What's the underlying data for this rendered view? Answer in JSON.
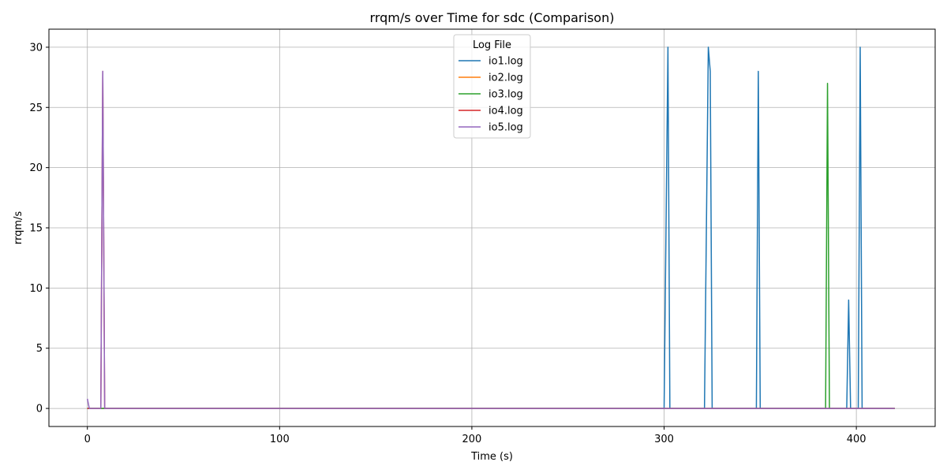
{
  "chart_data": {
    "type": "line",
    "title": "rrqm/s over Time for sdc (Comparison)",
    "xlabel": "Time (s)",
    "ylabel": "rrqm/s",
    "xlim": [
      -20,
      441
    ],
    "ylim": [
      -1.5,
      31.5
    ],
    "xticks": [
      0,
      100,
      200,
      300,
      400
    ],
    "yticks": [
      0,
      5,
      10,
      15,
      20,
      25,
      30
    ],
    "grid": true,
    "legend": {
      "title": "Log File",
      "placement": "upper center"
    },
    "series": [
      {
        "name": "io1.log",
        "color": "#1f77b4",
        "points": [
          [
            0,
            0
          ],
          [
            300,
            0
          ],
          [
            302,
            30
          ],
          [
            303,
            0
          ],
          [
            321,
            0
          ],
          [
            323,
            30
          ],
          [
            324,
            28
          ],
          [
            325,
            0
          ],
          [
            348,
            0
          ],
          [
            349,
            28
          ],
          [
            350,
            0
          ],
          [
            395,
            0
          ],
          [
            396,
            9
          ],
          [
            397,
            0
          ],
          [
            401,
            0
          ],
          [
            402,
            30
          ],
          [
            403,
            0
          ],
          [
            420,
            0
          ]
        ]
      },
      {
        "name": "io2.log",
        "color": "#ff7f0e",
        "points": [
          [
            0,
            0
          ],
          [
            420,
            0
          ]
        ]
      },
      {
        "name": "io3.log",
        "color": "#2ca02c",
        "points": [
          [
            0,
            0
          ],
          [
            384,
            0
          ],
          [
            385,
            27
          ],
          [
            386,
            0
          ],
          [
            420,
            0
          ]
        ]
      },
      {
        "name": "io4.log",
        "color": "#d62728",
        "points": [
          [
            0,
            0
          ],
          [
            7,
            0
          ],
          [
            8,
            28
          ],
          [
            9,
            0
          ],
          [
            420,
            0
          ]
        ]
      },
      {
        "name": "io5.log",
        "color": "#9467bd",
        "points": [
          [
            0,
            0.8
          ],
          [
            1,
            0
          ],
          [
            7,
            0
          ],
          [
            8,
            28
          ],
          [
            9,
            0
          ],
          [
            420,
            0
          ]
        ]
      }
    ]
  }
}
